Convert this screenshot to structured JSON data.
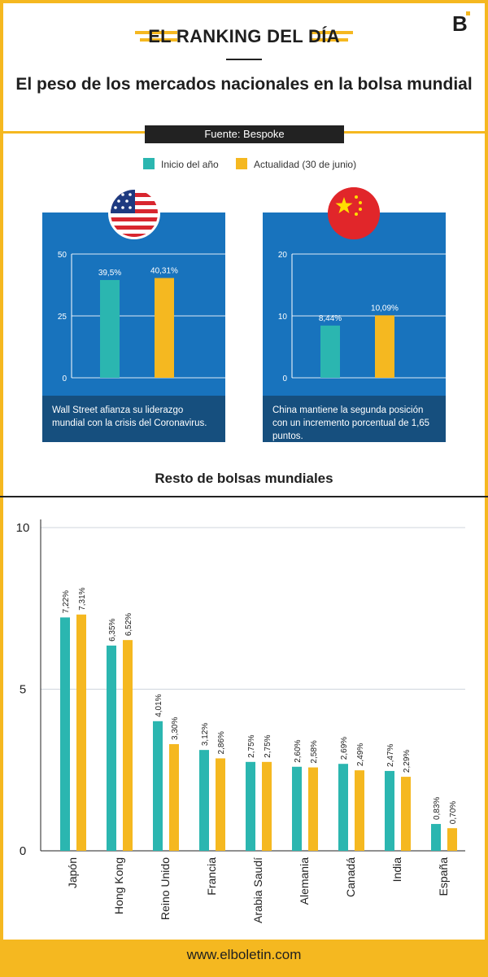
{
  "colors": {
    "accent": "#f5b820",
    "teal": "#2bb6b0",
    "blue": "#1873bd",
    "dark_blue": "#164f7e",
    "dark": "#222222"
  },
  "header": {
    "title": "EL RANKING DEL DÍA",
    "logo": "B"
  },
  "title": "El peso de los mercados nacionales en la bolsa mundial",
  "source": "Fuente: Bespoke",
  "legend": {
    "start": "Inicio del año",
    "current": "Actualidad (30 de junio)"
  },
  "section_title": "Resto de bolsas mundiales",
  "footer": "www.elboletin.com",
  "icons": {
    "usa_flag": "usa-flag-icon",
    "china_flag": "china-flag-icon"
  },
  "chart_data": [
    {
      "type": "bar",
      "categories": [
        "Estados Unidos"
      ],
      "series": [
        {
          "name": "Inicio del año",
          "values": [
            39.5
          ],
          "labels": [
            "39,5%"
          ]
        },
        {
          "name": "Actualidad (30 de junio)",
          "values": [
            40.31
          ],
          "labels": [
            "40,31%"
          ]
        }
      ],
      "yticks": [
        "0",
        "25",
        "50"
      ],
      "ylim": [
        0,
        50
      ],
      "caption": "Wall Street afianza su liderazgo mundial con la crisis del Coronavirus."
    },
    {
      "type": "bar",
      "categories": [
        "China"
      ],
      "series": [
        {
          "name": "Inicio del año",
          "values": [
            8.44
          ],
          "labels": [
            "8,44%"
          ]
        },
        {
          "name": "Actualidad (30 de junio)",
          "values": [
            10.09
          ],
          "labels": [
            "10,09%"
          ]
        }
      ],
      "yticks": [
        "0",
        "10",
        "20"
      ],
      "ylim": [
        0,
        20
      ],
      "caption": "China mantiene la segunda posición con un incremento porcentual de 1,65 puntos."
    },
    {
      "type": "bar",
      "categories": [
        "Japón",
        "Hong Kong",
        "Reino Unido",
        "Francia",
        "Arabia Saudí",
        "Alemania",
        "Canadá",
        "India",
        "España"
      ],
      "series": [
        {
          "name": "Inicio del año",
          "values": [
            7.22,
            6.35,
            4.01,
            3.12,
            2.75,
            2.6,
            2.69,
            2.47,
            0.83
          ],
          "labels": [
            "7,22%",
            "6,35%",
            "4,01%",
            "3,12%",
            "2,75%",
            "2,60%",
            "2,69%",
            "2,47%",
            "0,83%"
          ]
        },
        {
          "name": "Actualidad (30 de junio)",
          "values": [
            7.31,
            6.52,
            3.3,
            2.86,
            2.75,
            2.58,
            2.49,
            2.29,
            0.7
          ],
          "labels": [
            "7,31%",
            "6,52%",
            "3,30%",
            "2,86%",
            "2,75%",
            "2,58%",
            "2,49%",
            "2,29%",
            "0,70%"
          ]
        }
      ],
      "yticks": [
        "0",
        "5",
        "10"
      ],
      "ylim": [
        0,
        10
      ]
    }
  ]
}
